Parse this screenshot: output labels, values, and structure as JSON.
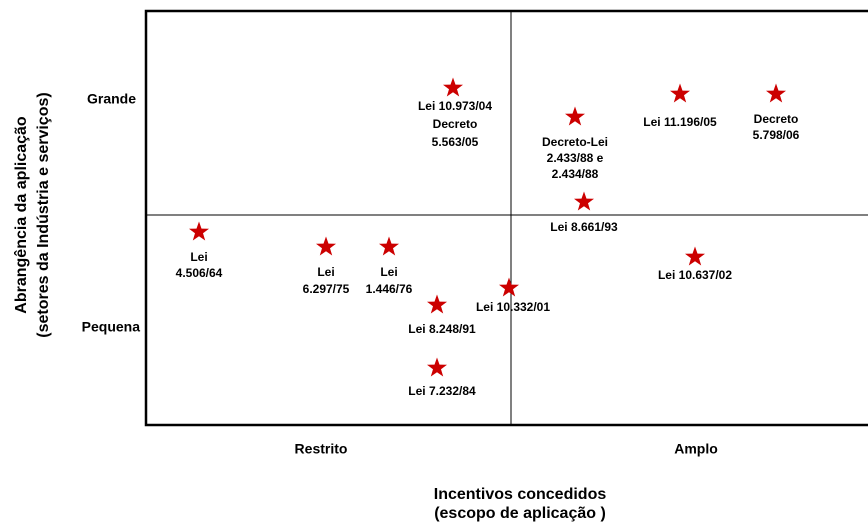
{
  "y_axis": {
    "title": [
      "Abrangência da aplicação",
      "(setores da Indústria e serviços)"
    ],
    "levels": [
      "Grande",
      "Pequena"
    ]
  },
  "x_axis": {
    "title": [
      "Incentivos concedidos",
      "(escopo de aplicação )"
    ],
    "levels": [
      "Restrito",
      "Amplo"
    ]
  },
  "nodes": [
    {
      "label": [
        "Lei 10.973/04",
        "Decreto",
        "5.563/05"
      ]
    },
    {
      "label": [
        "Decreto-Lei",
        "2.433/88 e",
        "2.434/88"
      ]
    },
    {
      "label": [
        "Lei 11.196/05"
      ]
    },
    {
      "label": [
        "Decreto",
        "5.798/06"
      ]
    },
    {
      "label": [
        "Lei 8.661/93"
      ]
    },
    {
      "label": [
        "Lei",
        "4.506/64"
      ]
    },
    {
      "label": [
        "Lei",
        "6.297/75"
      ]
    },
    {
      "label": [
        "Lei",
        "1.446/76"
      ]
    },
    {
      "label": [
        "Lei 10.332/01"
      ]
    },
    {
      "label": [
        "Lei 8.248/91"
      ]
    },
    {
      "label": [
        "Lei 10.637/02"
      ]
    },
    {
      "label": [
        "Lei 7.232/84"
      ]
    }
  ]
}
